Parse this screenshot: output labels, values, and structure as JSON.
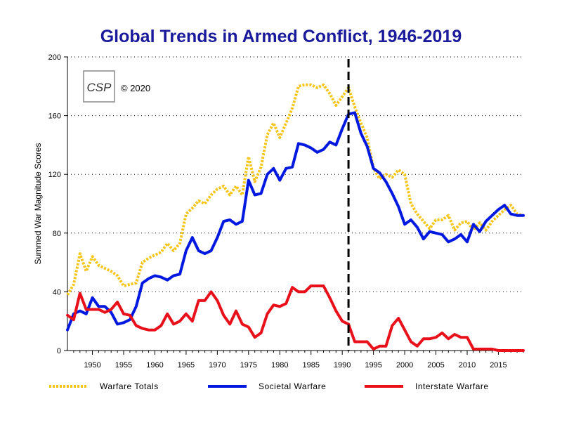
{
  "chart_data": {
    "type": "line",
    "title": "Global Trends in Armed Conflict, 1946-2019",
    "xlabel": "",
    "ylabel": "Summed War Magnitude Scores",
    "xlim": [
      1946,
      2019
    ],
    "ylim": [
      0,
      200
    ],
    "y_ticks": [
      0,
      40,
      80,
      120,
      160,
      200
    ],
    "x_ticks": [
      1950,
      1955,
      1960,
      1965,
      1970,
      1975,
      1980,
      1985,
      1990,
      1995,
      2000,
      2005,
      2010,
      2015
    ],
    "grid": "horizontal dotted",
    "legend_position": "bottom",
    "reference_line": {
      "x": 1991,
      "style": "dashed"
    },
    "logo_text": "CSP",
    "copyright": "© 2020",
    "x": [
      1946,
      1947,
      1948,
      1949,
      1950,
      1951,
      1952,
      1953,
      1954,
      1955,
      1956,
      1957,
      1958,
      1959,
      1960,
      1961,
      1962,
      1963,
      1964,
      1965,
      1966,
      1967,
      1968,
      1969,
      1970,
      1971,
      1972,
      1973,
      1974,
      1975,
      1976,
      1977,
      1978,
      1979,
      1980,
      1981,
      1982,
      1983,
      1984,
      1985,
      1986,
      1987,
      1988,
      1989,
      1990,
      1991,
      1992,
      1993,
      1994,
      1995,
      1996,
      1997,
      1998,
      1999,
      2000,
      2001,
      2002,
      2003,
      2004,
      2005,
      2006,
      2007,
      2008,
      2009,
      2010,
      2011,
      2012,
      2013,
      2014,
      2015,
      2016,
      2017,
      2018,
      2019
    ],
    "series": [
      {
        "name": "Warfare Totals",
        "color": "#f5c518",
        "style": "dotted",
        "values": [
          38,
          45,
          66,
          54,
          64,
          58,
          56,
          54,
          51,
          44,
          45,
          46,
          60,
          63,
          65,
          67,
          73,
          68,
          73,
          93,
          97,
          102,
          100,
          106,
          110,
          112,
          106,
          112,
          106,
          132,
          115,
          125,
          147,
          155,
          145,
          155,
          165,
          180,
          181,
          181,
          179,
          181,
          175,
          167,
          173,
          179,
          166,
          155,
          145,
          124,
          117,
          120,
          118,
          123,
          120,
          100,
          93,
          88,
          83,
          89,
          89,
          92,
          82,
          87,
          88,
          82,
          87,
          82,
          88,
          92,
          96,
          99,
          93,
          92
        ]
      },
      {
        "name": "Societal Warfare",
        "color": "#0018e0",
        "style": "solid",
        "values": [
          14,
          25,
          27,
          25,
          36,
          30,
          30,
          26,
          18,
          19,
          21,
          30,
          46,
          49,
          51,
          50,
          48,
          51,
          52,
          68,
          77,
          68,
          66,
          68,
          77,
          88,
          89,
          86,
          88,
          116,
          106,
          107,
          120,
          124,
          116,
          124,
          125,
          141,
          140,
          138,
          135,
          137,
          142,
          140,
          151,
          161,
          162,
          148,
          139,
          124,
          121,
          115,
          107,
          98,
          86,
          89,
          84,
          76,
          81,
          80,
          79,
          74,
          76,
          79,
          74,
          86,
          81,
          88,
          92,
          96,
          99,
          93,
          92,
          92
        ]
      },
      {
        "name": "Interstate Warfare",
        "color": "#e8101a",
        "style": "solid",
        "values": [
          24,
          21,
          39,
          28,
          28,
          28,
          26,
          28,
          33,
          25,
          24,
          17,
          15,
          14,
          14,
          17,
          25,
          18,
          20,
          25,
          20,
          34,
          34,
          40,
          34,
          24,
          18,
          27,
          18,
          16,
          9,
          12,
          25,
          31,
          30,
          32,
          43,
          40,
          40,
          44,
          44,
          44,
          36,
          27,
          20,
          18,
          6,
          6,
          6,
          1,
          3,
          3,
          17,
          22,
          14,
          6,
          3,
          8,
          8,
          9,
          12,
          8,
          11,
          9,
          9,
          1,
          1,
          1,
          1,
          0,
          0,
          0,
          0,
          0
        ]
      }
    ]
  }
}
